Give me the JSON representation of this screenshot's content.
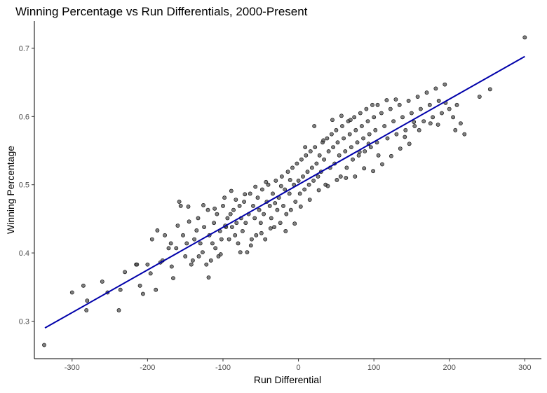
{
  "chart_data": {
    "type": "scatter",
    "title": "Winning Percentage vs Run Differentials, 2000-Present",
    "xlabel": "Run Differential",
    "ylabel": "Winning Percentage",
    "xlim": [
      -350,
      322
    ],
    "ylim": [
      0.245,
      0.74
    ],
    "xticks": [
      -300,
      -200,
      -100,
      0,
      100,
      200,
      300
    ],
    "yticks": [
      0.3,
      0.4,
      0.5,
      0.6,
      0.7
    ],
    "grid": false,
    "point_color": "#555555",
    "trend_color": "#0000aa",
    "trend_line": {
      "x": [
        -336,
        300
      ],
      "y": [
        0.29,
        0.688
      ]
    },
    "points": [
      [
        -337,
        0.265
      ],
      [
        -300,
        0.342
      ],
      [
        -285,
        0.352
      ],
      [
        -281,
        0.316
      ],
      [
        -253,
        0.342
      ],
      [
        -238,
        0.316
      ],
      [
        -236,
        0.346
      ],
      [
        -215,
        0.383
      ],
      [
        -214,
        0.383
      ],
      [
        -206,
        0.34
      ],
      [
        -200,
        0.383
      ],
      [
        -189,
        0.346
      ],
      [
        -194,
        0.42
      ],
      [
        -187,
        0.433
      ],
      [
        -180,
        0.389
      ],
      [
        -183,
        0.386
      ],
      [
        -177,
        0.426
      ],
      [
        -172,
        0.407
      ],
      [
        -169,
        0.414
      ],
      [
        -166,
        0.363
      ],
      [
        -162,
        0.407
      ],
      [
        -158,
        0.475
      ],
      [
        -156,
        0.469
      ],
      [
        -153,
        0.426
      ],
      [
        -150,
        0.395
      ],
      [
        -148,
        0.414
      ],
      [
        -145,
        0.446
      ],
      [
        -142,
        0.383
      ],
      [
        -140,
        0.389
      ],
      [
        -138,
        0.42
      ],
      [
        -135,
        0.433
      ],
      [
        -133,
        0.451
      ],
      [
        -130,
        0.414
      ],
      [
        -127,
        0.401
      ],
      [
        -125,
        0.438
      ],
      [
        -122,
        0.383
      ],
      [
        -120,
        0.463
      ],
      [
        -118,
        0.426
      ],
      [
        -116,
        0.389
      ],
      [
        -114,
        0.414
      ],
      [
        -112,
        0.444
      ],
      [
        -110,
        0.407
      ],
      [
        -108,
        0.457
      ],
      [
        -106,
        0.395
      ],
      [
        -104,
        0.432
      ],
      [
        -102,
        0.42
      ],
      [
        -100,
        0.469
      ],
      [
        -98,
        0.481
      ],
      [
        -96,
        0.438
      ],
      [
        -94,
        0.451
      ],
      [
        -92,
        0.42
      ],
      [
        -90,
        0.457
      ],
      [
        -88,
        0.438
      ],
      [
        -86,
        0.463
      ],
      [
        -84,
        0.426
      ],
      [
        -82,
        0.444
      ],
      [
        -80,
        0.414
      ],
      [
        -78,
        0.469
      ],
      [
        -76,
        0.451
      ],
      [
        -74,
        0.432
      ],
      [
        -72,
        0.475
      ],
      [
        -70,
        0.444
      ],
      [
        -68,
        0.401
      ],
      [
        -66,
        0.457
      ],
      [
        -64,
        0.487
      ],
      [
        -62,
        0.42
      ],
      [
        -60,
        0.469
      ],
      [
        -58,
        0.451
      ],
      [
        -56,
        0.426
      ],
      [
        -54,
        0.481
      ],
      [
        -52,
        0.463
      ],
      [
        -50,
        0.444
      ],
      [
        -48,
        0.493
      ],
      [
        -46,
        0.457
      ],
      [
        -44,
        0.42
      ],
      [
        -42,
        0.475
      ],
      [
        -40,
        0.5
      ],
      [
        -38,
        0.469
      ],
      [
        -36,
        0.451
      ],
      [
        -34,
        0.487
      ],
      [
        -32,
        0.438
      ],
      [
        -30,
        0.506
      ],
      [
        -28,
        0.463
      ],
      [
        -26,
        0.481
      ],
      [
        -24,
        0.444
      ],
      [
        -22,
        0.512
      ],
      [
        -20,
        0.469
      ],
      [
        -18,
        0.493
      ],
      [
        -16,
        0.457
      ],
      [
        -14,
        0.519
      ],
      [
        -12,
        0.487
      ],
      [
        -10,
        0.463
      ],
      [
        -8,
        0.525
      ],
      [
        -6,
        0.5
      ],
      [
        -4,
        0.475
      ],
      [
        -2,
        0.531
      ],
      [
        0,
        0.506
      ],
      [
        2,
        0.487
      ],
      [
        4,
        0.537
      ],
      [
        6,
        0.512
      ],
      [
        8,
        0.493
      ],
      [
        10,
        0.543
      ],
      [
        12,
        0.519
      ],
      [
        14,
        0.5
      ],
      [
        16,
        0.549
      ],
      [
        18,
        0.525
      ],
      [
        20,
        0.506
      ],
      [
        22,
        0.555
      ],
      [
        24,
        0.531
      ],
      [
        26,
        0.512
      ],
      [
        28,
        0.543
      ],
      [
        30,
        0.519
      ],
      [
        32,
        0.562
      ],
      [
        34,
        0.537
      ],
      [
        36,
        0.5
      ],
      [
        38,
        0.568
      ],
      [
        40,
        0.549
      ],
      [
        42,
        0.525
      ],
      [
        44,
        0.574
      ],
      [
        46,
        0.555
      ],
      [
        48,
        0.531
      ],
      [
        50,
        0.58
      ],
      [
        52,
        0.562
      ],
      [
        54,
        0.543
      ],
      [
        56,
        0.512
      ],
      [
        58,
        0.586
      ],
      [
        60,
        0.568
      ],
      [
        62,
        0.549
      ],
      [
        64,
        0.525
      ],
      [
        66,
        0.593
      ],
      [
        68,
        0.574
      ],
      [
        70,
        0.555
      ],
      [
        72,
        0.537
      ],
      [
        74,
        0.599
      ],
      [
        76,
        0.58
      ],
      [
        78,
        0.562
      ],
      [
        80,
        0.543
      ],
      [
        82,
        0.605
      ],
      [
        84,
        0.586
      ],
      [
        86,
        0.568
      ],
      [
        88,
        0.549
      ],
      [
        90,
        0.611
      ],
      [
        92,
        0.593
      ],
      [
        94,
        0.574
      ],
      [
        96,
        0.555
      ],
      [
        98,
        0.617
      ],
      [
        100,
        0.599
      ],
      [
        102,
        0.58
      ],
      [
        104,
        0.562
      ],
      [
        106,
        0.543
      ],
      [
        110,
        0.605
      ],
      [
        114,
        0.586
      ],
      [
        118,
        0.568
      ],
      [
        122,
        0.611
      ],
      [
        126,
        0.593
      ],
      [
        130,
        0.574
      ],
      [
        134,
        0.617
      ],
      [
        138,
        0.599
      ],
      [
        142,
        0.58
      ],
      [
        146,
        0.623
      ],
      [
        150,
        0.605
      ],
      [
        154,
        0.586
      ],
      [
        158,
        0.629
      ],
      [
        162,
        0.611
      ],
      [
        166,
        0.593
      ],
      [
        170,
        0.635
      ],
      [
        174,
        0.617
      ],
      [
        178,
        0.599
      ],
      [
        182,
        0.641
      ],
      [
        186,
        0.623
      ],
      [
        190,
        0.605
      ],
      [
        194,
        0.647
      ],
      [
        200,
        0.611
      ],
      [
        205,
        0.599
      ],
      [
        210,
        0.617
      ],
      [
        220,
        0.574
      ],
      [
        240,
        0.629
      ],
      [
        254,
        0.64
      ],
      [
        300,
        0.716
      ],
      [
        -280,
        0.33
      ],
      [
        -260,
        0.358
      ],
      [
        -230,
        0.372
      ],
      [
        -210,
        0.352
      ],
      [
        -196,
        0.37
      ],
      [
        -168,
        0.38
      ],
      [
        -160,
        0.44
      ],
      [
        -146,
        0.468
      ],
      [
        -132,
        0.395
      ],
      [
        -126,
        0.47
      ],
      [
        -119,
        0.364
      ],
      [
        -111,
        0.465
      ],
      [
        -103,
        0.398
      ],
      [
        -97,
        0.44
      ],
      [
        -89,
        0.491
      ],
      [
        -83,
        0.478
      ],
      [
        -77,
        0.401
      ],
      [
        -71,
        0.486
      ],
      [
        -63,
        0.411
      ],
      [
        -57,
        0.497
      ],
      [
        -49,
        0.429
      ],
      [
        -43,
        0.504
      ],
      [
        -37,
        0.436
      ],
      [
        -31,
        0.473
      ],
      [
        -23,
        0.498
      ],
      [
        -17,
        0.432
      ],
      [
        -11,
        0.507
      ],
      [
        -5,
        0.443
      ],
      [
        3,
        0.468
      ],
      [
        9,
        0.555
      ],
      [
        15,
        0.478
      ],
      [
        21,
        0.586
      ],
      [
        27,
        0.492
      ],
      [
        33,
        0.565
      ],
      [
        39,
        0.498
      ],
      [
        45,
        0.595
      ],
      [
        51,
        0.507
      ],
      [
        57,
        0.601
      ],
      [
        63,
        0.51
      ],
      [
        69,
        0.595
      ],
      [
        75,
        0.512
      ],
      [
        81,
        0.548
      ],
      [
        87,
        0.524
      ],
      [
        93,
        0.56
      ],
      [
        99,
        0.52
      ],
      [
        105,
        0.617
      ],
      [
        111,
        0.53
      ],
      [
        117,
        0.624
      ],
      [
        123,
        0.542
      ],
      [
        129,
        0.625
      ],
      [
        135,
        0.553
      ],
      [
        141,
        0.57
      ],
      [
        147,
        0.56
      ],
      [
        153,
        0.592
      ],
      [
        160,
        0.58
      ],
      [
        175,
        0.59
      ],
      [
        185,
        0.588
      ],
      [
        195,
        0.62
      ],
      [
        208,
        0.58
      ],
      [
        215,
        0.59
      ]
    ]
  }
}
